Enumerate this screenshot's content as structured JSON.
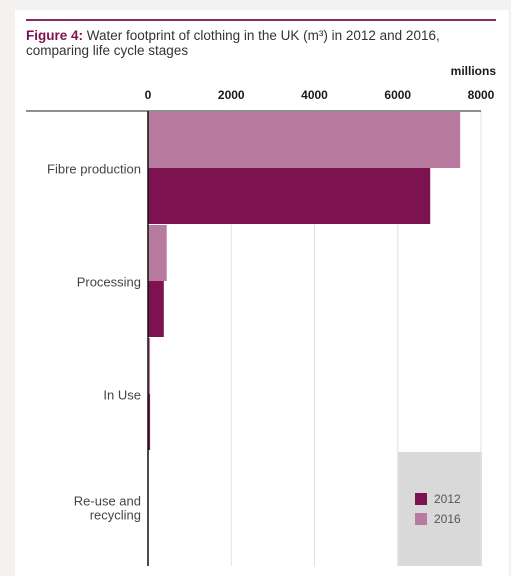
{
  "title_lead": "Figure 4:",
  "title_text": "Water footprint of clothing in the UK (m³) in 2012 and 2016, comparing life cycle stages",
  "unit_label": "millions",
  "chart_data": {
    "type": "bar",
    "orientation": "horizontal",
    "categories": [
      "Fibre production",
      "Processing",
      "In Use",
      "Re-use and recycling"
    ],
    "series": [
      {
        "name": "2016",
        "color": "#b97aa0",
        "values": [
          7500,
          450,
          50,
          0
        ]
      },
      {
        "name": "2012",
        "color": "#7d1250",
        "values": [
          6780,
          380,
          50,
          0
        ]
      }
    ],
    "xlim": [
      0,
      8000
    ],
    "xticks": [
      "0",
      "2000",
      "4000",
      "6000",
      "8000"
    ],
    "grid": true,
    "legend_position": "bottom-right",
    "legend": [
      {
        "name": "2012",
        "color": "#7d1250"
      },
      {
        "name": "2016",
        "color": "#b97aa0"
      }
    ]
  }
}
